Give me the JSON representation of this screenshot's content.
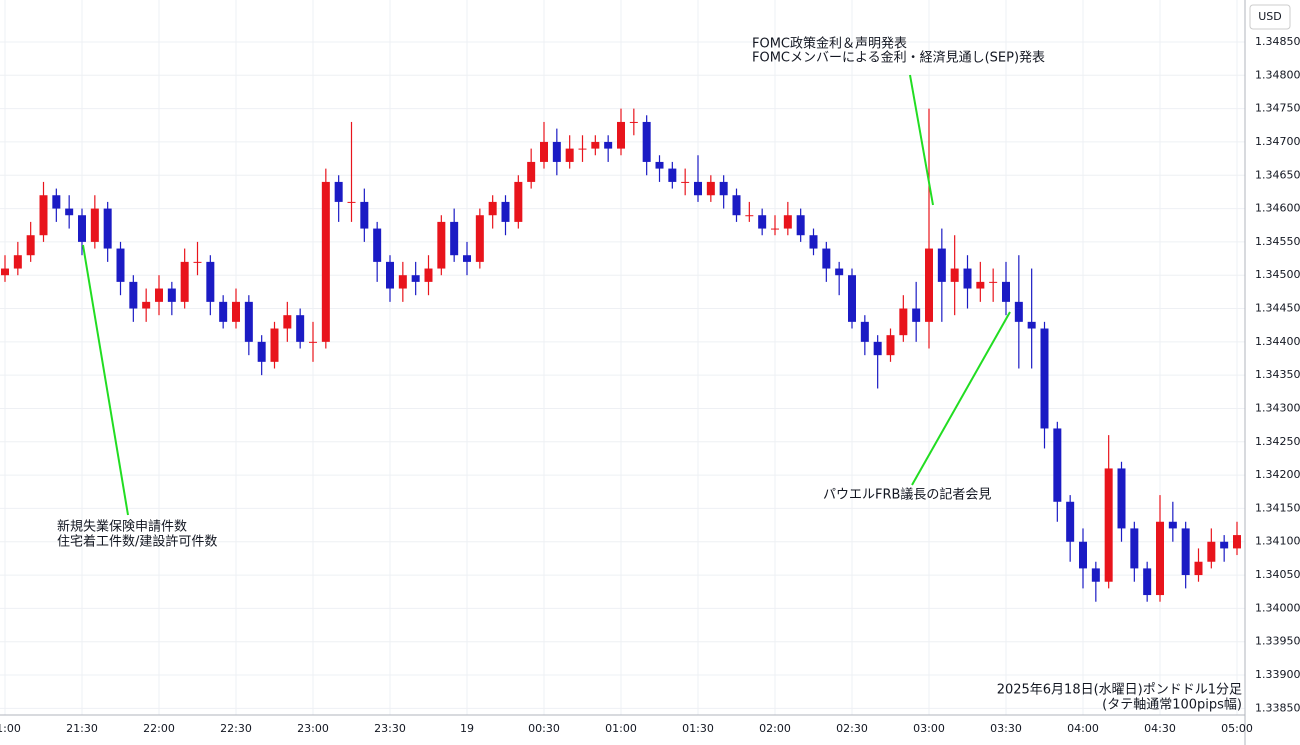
{
  "chart_data": {
    "type": "candlestick",
    "y_axis_label": "USD",
    "categories": [
      "21:00",
      null,
      null,
      null,
      null,
      null,
      "21:30",
      null,
      null,
      null,
      null,
      null,
      "22:00",
      null,
      null,
      null,
      null,
      null,
      "22:30",
      null,
      null,
      null,
      null,
      null,
      "23:00",
      null,
      null,
      null,
      null,
      null,
      "23:30",
      null,
      null,
      null,
      null,
      null,
      "19",
      null,
      null,
      null,
      null,
      null,
      "00:30",
      null,
      null,
      null,
      null,
      null,
      "01:00",
      null,
      null,
      null,
      null,
      null,
      "01:30",
      null,
      null,
      null,
      null,
      null,
      "02:00",
      null,
      null,
      null,
      null,
      null,
      "02:30",
      null,
      null,
      null,
      null,
      null,
      "03:00",
      null,
      null,
      null,
      null,
      null,
      "03:30",
      null,
      null,
      null,
      null,
      null,
      "04:00",
      null,
      null,
      null,
      null,
      null,
      "04:30",
      null,
      null,
      null,
      null,
      null,
      "05:00"
    ],
    "open": [
      1.345,
      1.3451,
      1.3453,
      1.3456,
      1.3462,
      1.346,
      1.3459,
      1.3455,
      1.346,
      1.3454,
      1.3449,
      1.3445,
      1.3446,
      1.3448,
      1.3446,
      1.3452,
      1.3452,
      1.3446,
      1.3443,
      1.3446,
      1.344,
      1.3437,
      1.3442,
      1.3444,
      1.344,
      1.344,
      1.3464,
      1.3461,
      1.3461,
      1.3457,
      1.3452,
      1.3448,
      1.345,
      1.3449,
      1.3451,
      1.3458,
      1.3453,
      1.3452,
      1.3459,
      1.3461,
      1.3458,
      1.3464,
      1.3467,
      1.347,
      1.3467,
      1.3469,
      1.3469,
      1.347,
      1.3469,
      1.3473,
      1.3473,
      1.3467,
      1.3466,
      1.3464,
      1.3464,
      1.3462,
      1.3464,
      1.3462,
      1.3459,
      1.3459,
      1.3457,
      1.3457,
      1.3459,
      1.3456,
      1.3454,
      1.3451,
      1.345,
      1.3443,
      1.344,
      1.3438,
      1.3441,
      1.3445,
      1.3443,
      1.3454,
      1.3449,
      1.3451,
      1.3448,
      1.3449,
      1.3449,
      1.3446,
      1.3443,
      1.3442,
      1.3427,
      1.3416,
      1.341,
      1.3406,
      1.3404,
      1.3421,
      1.3412,
      1.3406,
      1.3402,
      1.3413,
      1.3412,
      1.3405,
      1.3407,
      1.341,
      1.3409
    ],
    "high": [
      1.3453,
      1.3455,
      1.3458,
      1.3464,
      1.3463,
      1.3462,
      1.346,
      1.3462,
      1.3461,
      1.3455,
      1.345,
      1.3448,
      1.345,
      1.3449,
      1.3454,
      1.3455,
      1.3453,
      1.3447,
      1.3448,
      1.3447,
      1.3441,
      1.3443,
      1.3446,
      1.3445,
      1.3443,
      1.3466,
      1.3465,
      1.3473,
      1.3463,
      1.3458,
      1.3453,
      1.3452,
      1.3452,
      1.3453,
      1.3459,
      1.346,
      1.3455,
      1.346,
      1.3462,
      1.3462,
      1.3465,
      1.3469,
      1.3473,
      1.3472,
      1.3471,
      1.3471,
      1.3471,
      1.3471,
      1.3475,
      1.3475,
      1.3474,
      1.3468,
      1.3467,
      1.3466,
      1.3468,
      1.3465,
      1.3465,
      1.3463,
      1.3461,
      1.346,
      1.3459,
      1.3461,
      1.346,
      1.3457,
      1.3455,
      1.3452,
      1.3451,
      1.3444,
      1.3441,
      1.3442,
      1.3447,
      1.3449,
      1.3475,
      1.3457,
      1.3456,
      1.3453,
      1.3452,
      1.3451,
      1.3452,
      1.3453,
      1.3451,
      1.3443,
      1.3428,
      1.3417,
      1.3412,
      1.3407,
      1.3426,
      1.3422,
      1.3413,
      1.3407,
      1.3417,
      1.3416,
      1.3413,
      1.3409,
      1.3412,
      1.3411,
      1.3413
    ],
    "low": [
      1.3449,
      1.345,
      1.3452,
      1.3455,
      1.3458,
      1.3457,
      1.3453,
      1.3454,
      1.3452,
      1.3447,
      1.3443,
      1.3443,
      1.3444,
      1.3444,
      1.3445,
      1.345,
      1.3444,
      1.3442,
      1.3442,
      1.3438,
      1.3435,
      1.3436,
      1.344,
      1.3439,
      1.3437,
      1.3439,
      1.3458,
      1.3458,
      1.3455,
      1.3449,
      1.3446,
      1.3446,
      1.3447,
      1.3447,
      1.345,
      1.3452,
      1.345,
      1.3451,
      1.3457,
      1.3456,
      1.3457,
      1.3463,
      1.3466,
      1.3465,
      1.3466,
      1.3467,
      1.3468,
      1.3467,
      1.3468,
      1.3471,
      1.3465,
      1.3464,
      1.3463,
      1.3462,
      1.3461,
      1.3461,
      1.346,
      1.3458,
      1.3458,
      1.3456,
      1.3456,
      1.3456,
      1.3455,
      1.3453,
      1.3449,
      1.3447,
      1.3442,
      1.3438,
      1.3433,
      1.3437,
      1.344,
      1.344,
      1.3439,
      1.3443,
      1.3444,
      1.3445,
      1.3446,
      1.3446,
      1.3444,
      1.3436,
      1.3436,
      1.3424,
      1.3413,
      1.3407,
      1.3403,
      1.3401,
      1.3403,
      1.341,
      1.3404,
      1.3401,
      1.3401,
      1.341,
      1.3403,
      1.3404,
      1.3406,
      1.3407,
      1.3408
    ],
    "close": [
      1.3451,
      1.3453,
      1.3456,
      1.3462,
      1.346,
      1.3459,
      1.3455,
      1.346,
      1.3454,
      1.3449,
      1.3445,
      1.3446,
      1.3448,
      1.3446,
      1.3452,
      1.3452,
      1.3446,
      1.3443,
      1.3446,
      1.344,
      1.3437,
      1.3442,
      1.3444,
      1.344,
      1.344,
      1.3464,
      1.3461,
      1.3461,
      1.3457,
      1.3452,
      1.3448,
      1.345,
      1.3449,
      1.3451,
      1.3458,
      1.3453,
      1.3452,
      1.3459,
      1.3461,
      1.3458,
      1.3464,
      1.3467,
      1.347,
      1.3467,
      1.3469,
      1.3469,
      1.347,
      1.3469,
      1.3473,
      1.3473,
      1.3467,
      1.3466,
      1.3464,
      1.3464,
      1.3462,
      1.3464,
      1.3462,
      1.3459,
      1.3459,
      1.3457,
      1.3457,
      1.3459,
      1.3456,
      1.3454,
      1.3451,
      1.345,
      1.3443,
      1.344,
      1.3438,
      1.3441,
      1.3445,
      1.3443,
      1.3454,
      1.3449,
      1.3451,
      1.3448,
      1.3449,
      1.3449,
      1.3446,
      1.3443,
      1.3442,
      1.3427,
      1.3416,
      1.341,
      1.3406,
      1.3404,
      1.3421,
      1.3412,
      1.3406,
      1.3402,
      1.3413,
      1.3412,
      1.3405,
      1.3407,
      1.341,
      1.3409,
      1.3411
    ],
    "up_color": "#e8141c",
    "down_color": "#1b1bc4",
    "ylim": [
      1.3384,
      1.34913
    ],
    "yticks": [
      {
        "value": 1.3385,
        "label": "1.33850"
      },
      {
        "value": 1.339,
        "label": "1.33900"
      },
      {
        "value": 1.3395,
        "label": "1.33950"
      },
      {
        "value": 1.34,
        "label": "1.34000"
      },
      {
        "value": 1.3405,
        "label": "1.34050"
      },
      {
        "value": 1.341,
        "label": "1.34100"
      },
      {
        "value": 1.3415,
        "label": "1.34150"
      },
      {
        "value": 1.342,
        "label": "1.34200"
      },
      {
        "value": 1.3425,
        "label": "1.34250"
      },
      {
        "value": 1.343,
        "label": "1.34300"
      },
      {
        "value": 1.3435,
        "label": "1.34350"
      },
      {
        "value": 1.344,
        "label": "1.34400"
      },
      {
        "value": 1.3445,
        "label": "1.34450"
      },
      {
        "value": 1.345,
        "label": "1.34500"
      },
      {
        "value": 1.3455,
        "label": "1.34550"
      },
      {
        "value": 1.346,
        "label": "1.34600"
      },
      {
        "value": 1.3465,
        "label": "1.34650"
      },
      {
        "value": 1.347,
        "label": "1.34700"
      },
      {
        "value": 1.3475,
        "label": "1.34750"
      },
      {
        "value": 1.348,
        "label": "1.34800"
      },
      {
        "value": 1.3485,
        "label": "1.34850"
      }
    ],
    "grid": true,
    "annotations": [
      [
        "FOMC政策金利＆声明発表",
        "FOMCメンバーによる金利・経済見通し(SEP)発表"
      ],
      [
        "新規失業保険申請件数",
        "住宅着工件数/建設許可件数"
      ],
      [
        "パウエルFRB議長の記者会見"
      ]
    ],
    "caption": [
      "2025年6月18日(水曜日)ポンドドル1分足",
      "(タテ軸通常100pips幅)"
    ]
  }
}
